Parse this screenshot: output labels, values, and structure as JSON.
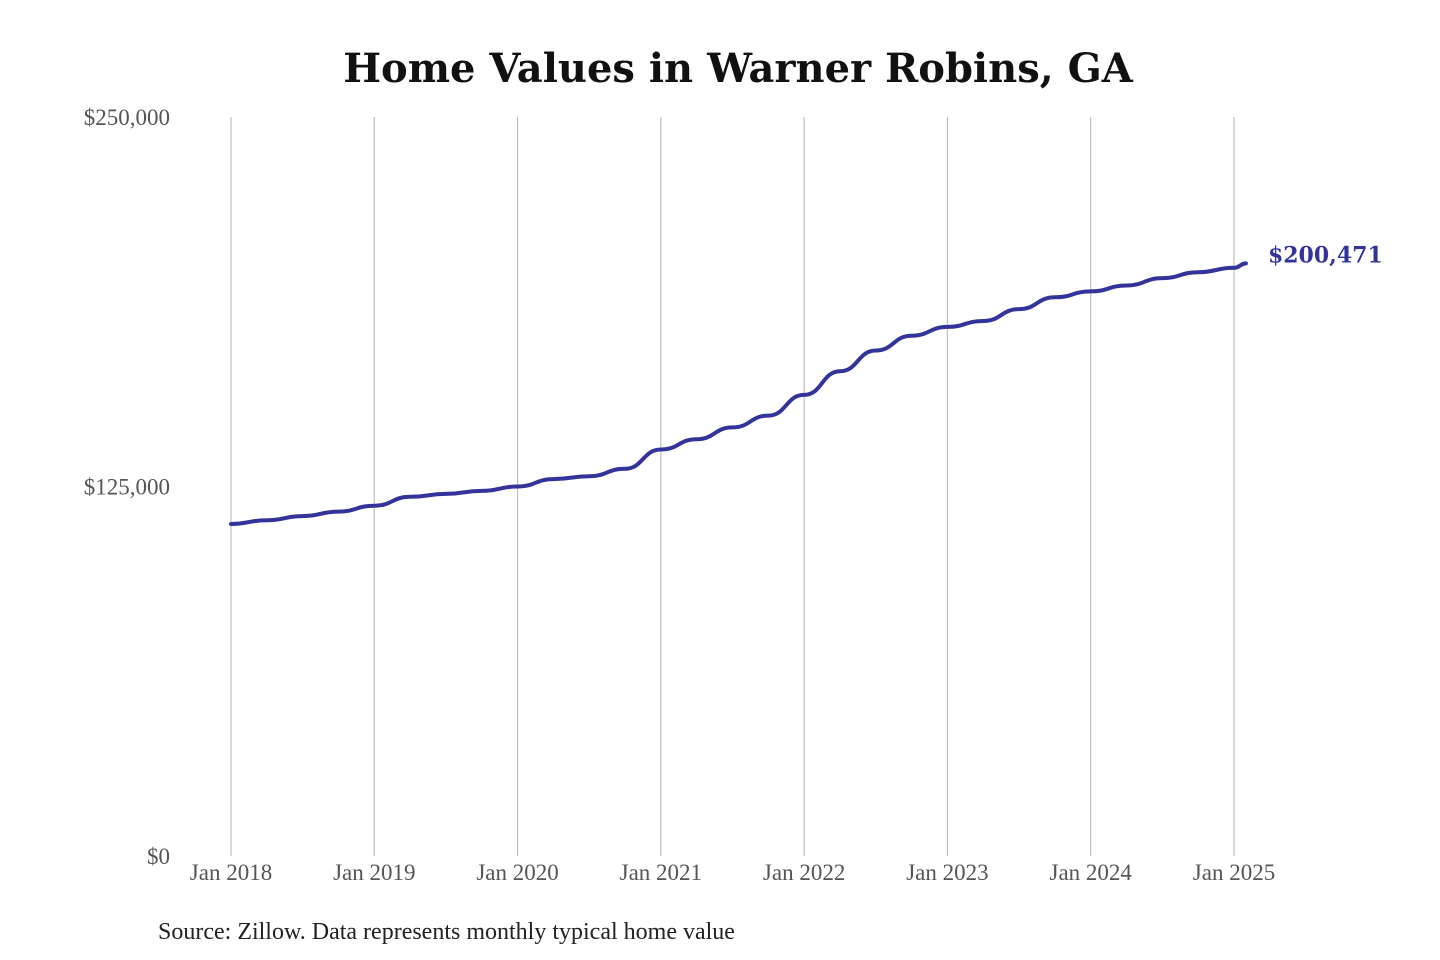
{
  "chart_data": {
    "type": "line",
    "title": "Home Values in Warner Robins, GA",
    "xlabel": "",
    "ylabel": "",
    "ylim": [
      0,
      250000
    ],
    "xlim": [
      "2018-01",
      "2025-01"
    ],
    "y_ticks": [
      {
        "value": 0,
        "label": "$0"
      },
      {
        "value": 125000,
        "label": "$125,000"
      },
      {
        "value": 250000,
        "label": "$250,000"
      }
    ],
    "x_ticks": [
      {
        "value": "2018-01",
        "label": "Jan 2018"
      },
      {
        "value": "2019-01",
        "label": "Jan 2019"
      },
      {
        "value": "2020-01",
        "label": "Jan 2020"
      },
      {
        "value": "2021-01",
        "label": "Jan 2021"
      },
      {
        "value": "2022-01",
        "label": "Jan 2022"
      },
      {
        "value": "2023-01",
        "label": "Jan 2023"
      },
      {
        "value": "2024-01",
        "label": "Jan 2024"
      },
      {
        "value": "2025-01",
        "label": "Jan 2025"
      }
    ],
    "grid": {
      "vertical": true,
      "horizontal": false
    },
    "series": [
      {
        "color": "#333399",
        "end_label": "$200,471",
        "points": [
          {
            "x": "2018-01",
            "y": 112300
          },
          {
            "x": "2018-04",
            "y": 113600
          },
          {
            "x": "2018-07",
            "y": 115000
          },
          {
            "x": "2018-10",
            "y": 116500
          },
          {
            "x": "2019-01",
            "y": 118500
          },
          {
            "x": "2019-04",
            "y": 121500
          },
          {
            "x": "2019-07",
            "y": 122500
          },
          {
            "x": "2019-10",
            "y": 123500
          },
          {
            "x": "2020-01",
            "y": 125000
          },
          {
            "x": "2020-04",
            "y": 127500
          },
          {
            "x": "2020-07",
            "y": 128500
          },
          {
            "x": "2020-10",
            "y": 131000
          },
          {
            "x": "2021-01",
            "y": 137500
          },
          {
            "x": "2021-04",
            "y": 141000
          },
          {
            "x": "2021-07",
            "y": 145000
          },
          {
            "x": "2021-10",
            "y": 149000
          },
          {
            "x": "2022-01",
            "y": 156000
          },
          {
            "x": "2022-04",
            "y": 164000
          },
          {
            "x": "2022-07",
            "y": 171000
          },
          {
            "x": "2022-10",
            "y": 176000
          },
          {
            "x": "2023-01",
            "y": 179000
          },
          {
            "x": "2023-04",
            "y": 181000
          },
          {
            "x": "2023-07",
            "y": 185000
          },
          {
            "x": "2023-10",
            "y": 189000
          },
          {
            "x": "2024-01",
            "y": 191000
          },
          {
            "x": "2024-04",
            "y": 193000
          },
          {
            "x": "2024-07",
            "y": 195500
          },
          {
            "x": "2024-10",
            "y": 197500
          },
          {
            "x": "2025-01",
            "y": 199000
          },
          {
            "x": "2025-02",
            "y": 200471
          }
        ]
      }
    ],
    "source_note": "Source: Zillow. Data represents monthly typical home value"
  }
}
